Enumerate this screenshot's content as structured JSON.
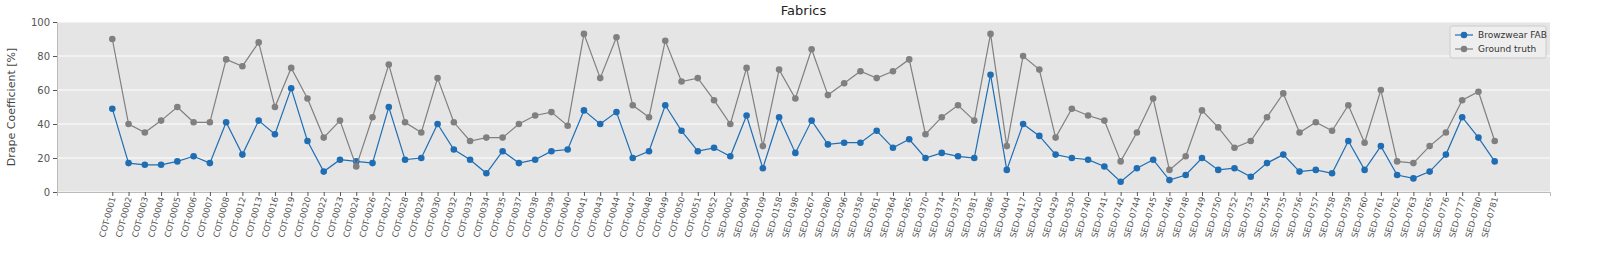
{
  "chart_data": {
    "type": "line",
    "title": "Fabrics",
    "y_label": "Drape Coefficient [%]",
    "categories": [
      "COT-0001",
      "COT-0002",
      "COT-0003",
      "COT-0004",
      "COT-0005",
      "COT-0006",
      "COT-0007",
      "COT-0008",
      "COT-0012",
      "COT-0013",
      "COT-0016",
      "COT-0019",
      "COT-0020",
      "COT-0022",
      "COT-0023",
      "COT-0024",
      "COT-0026",
      "COT-0027",
      "COT-0028",
      "COT-0029",
      "COT-0030",
      "COT-0032",
      "COT-0033",
      "COT-0034",
      "COT-0035",
      "COT-0037",
      "COT-0038",
      "COT-0039",
      "COT-0040",
      "COT-0041",
      "COT-0043",
      "COT-0044",
      "COT-0047",
      "COT-0048",
      "COT-0049",
      "COT-0050",
      "COT-0051",
      "COT-0052",
      "SED-0002",
      "SED-0094",
      "SED-0109",
      "SED-0158",
      "SED-0198",
      "SED-0267",
      "SED-0280",
      "SED-0296",
      "SED-0358",
      "SED-0361",
      "SED-0364",
      "SED-0365",
      "SED-0370",
      "SED-0374",
      "SED-0375",
      "SED-0381",
      "SED-0386",
      "SED-0404",
      "SED-0417",
      "SED-0420",
      "SED-0429",
      "SED-0530",
      "SED-0740",
      "SED-0741",
      "SED-0742",
      "SED-0744",
      "SED-0745",
      "SED-0746",
      "SED-0748",
      "SED-0749",
      "SED-0750",
      "SED-0752",
      "SED-0753",
      "SED-0754",
      "SED-0755",
      "SED-0756",
      "SED-0757",
      "SED-0758",
      "SED-0759",
      "SED-0760",
      "SED-0761",
      "SED-0762",
      "SED-0763",
      "SED-0765",
      "SED-0776",
      "SED-0777",
      "SED-0780",
      "SED-0781"
    ],
    "series": [
      {
        "name": "Browzwear FAB",
        "color": "#1f6eb4",
        "marker": "circle",
        "line_style": "solid",
        "values": [
          49,
          17,
          16,
          16,
          18,
          21,
          17,
          41,
          22,
          42,
          34,
          61,
          30,
          12,
          19,
          18,
          17,
          50,
          19,
          20,
          40,
          25,
          19,
          11,
          24,
          17,
          19,
          24,
          25,
          48,
          40,
          47,
          20,
          24,
          51,
          36,
          24,
          26,
          21,
          45,
          14,
          44,
          23,
          42,
          28,
          29,
          29,
          36,
          26,
          31,
          20,
          23,
          21,
          20,
          69,
          13,
          40,
          33,
          22,
          20,
          19,
          15,
          6,
          14,
          19,
          7,
          10,
          20,
          13,
          14,
          9,
          17,
          22,
          12,
          13,
          11,
          30,
          13,
          27,
          10,
          8,
          12,
          22,
          44,
          32,
          18
        ]
      },
      {
        "name": "Ground truth",
        "color": "#808080",
        "marker": "circle",
        "line_style": "solid",
        "values": [
          90,
          40,
          35,
          42,
          50,
          41,
          41,
          78,
          74,
          88,
          50,
          73,
          55,
          32,
          42,
          15,
          44,
          75,
          41,
          35,
          67,
          41,
          30,
          32,
          32,
          40,
          45,
          47,
          39,
          93,
          67,
          91,
          51,
          44,
          89,
          65,
          67,
          54,
          40,
          73,
          27,
          72,
          55,
          84,
          57,
          64,
          71,
          67,
          71,
          78,
          34,
          44,
          51,
          42,
          93,
          27,
          80,
          72,
          32,
          49,
          45,
          42,
          18,
          35,
          55,
          13,
          21,
          48,
          38,
          26,
          30,
          44,
          58,
          35,
          41,
          36,
          51,
          29,
          60,
          18,
          17,
          27,
          35,
          54,
          59,
          30
        ]
      }
    ],
    "ylim": [
      0,
      100
    ],
    "yticks": [
      0,
      20,
      40,
      60,
      80,
      100
    ],
    "grid": true,
    "legend": "upper right"
  }
}
